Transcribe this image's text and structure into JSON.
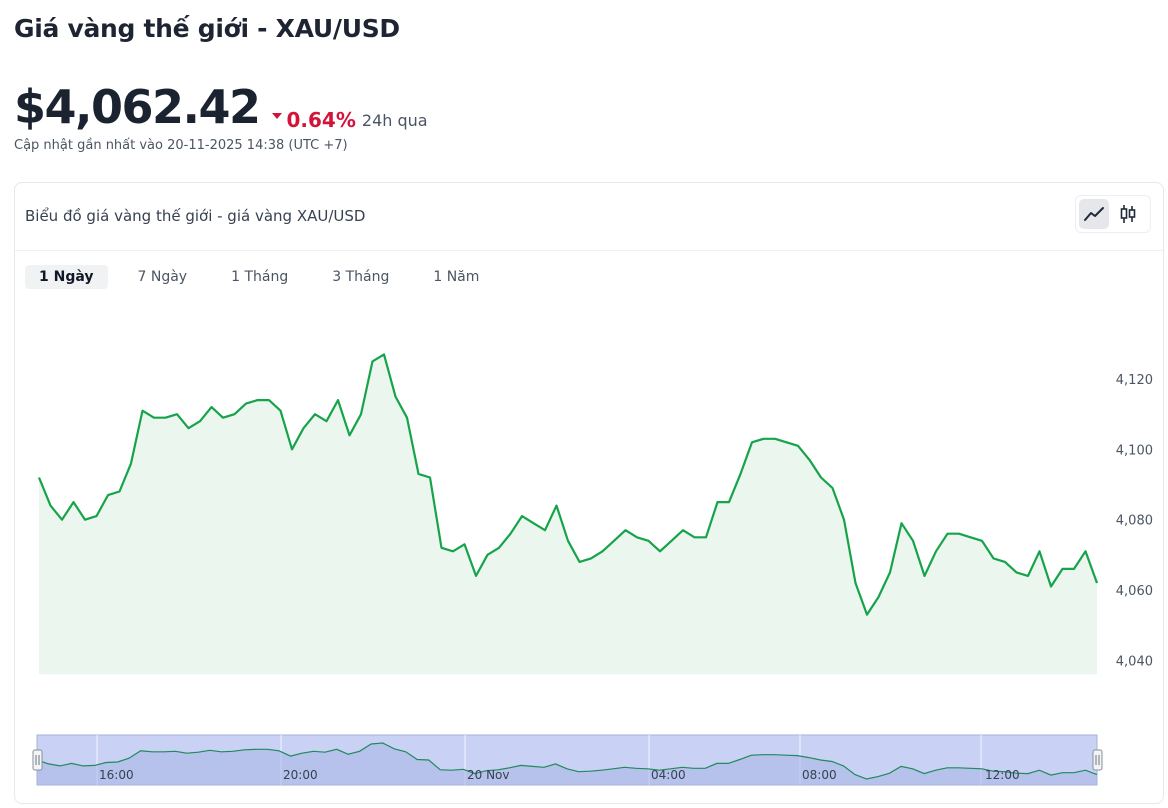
{
  "page": {
    "title": "Giá vàng thế giới - XAU/USD",
    "price": "$4,062.42",
    "change": "0.64%",
    "change_period": "24h qua",
    "updated": "Cập nhật gần nhất vào 20-11-2025 14:38 (UTC +7)"
  },
  "card": {
    "title": "Biểu đồ giá vàng thế giới - giá vàng XAU/USD",
    "modes": [
      {
        "icon": "line-chart-icon",
        "active": true
      },
      {
        "icon": "candlestick-icon",
        "active": false
      }
    ],
    "tabs": [
      {
        "label": "1 Ngày",
        "active": true
      },
      {
        "label": "7 Ngày",
        "active": false
      },
      {
        "label": "1 Tháng",
        "active": false
      },
      {
        "label": "3 Tháng",
        "active": false
      },
      {
        "label": "1 Năm",
        "active": false
      }
    ]
  },
  "colors": {
    "line": "#16a34a",
    "fill": "#eaf6ee",
    "down": "#d2143a",
    "navigator": "#c9d1f5"
  },
  "chart_data": {
    "type": "area",
    "ylim": [
      4040,
      4130
    ],
    "yticks": [
      4040,
      4060,
      4080,
      4100,
      4120
    ],
    "ytick_labels": [
      "4,040",
      "4,060",
      "4,080",
      "4,100",
      "4,120"
    ],
    "navigator_labels": [
      "16:00",
      "20:00",
      "20 Nov",
      "04:00",
      "08:00",
      "12:00"
    ],
    "series": [
      {
        "values": [
          4092,
          4084,
          4080,
          4085,
          4080,
          4081,
          4087,
          4088,
          4096,
          4111,
          4109,
          4109,
          4110,
          4106,
          4108,
          4112,
          4109,
          4110,
          4113,
          4114,
          4114,
          4111,
          4100,
          4106,
          4110,
          4108,
          4114,
          4104,
          4110,
          4125,
          4127,
          4115,
          4109,
          4093,
          4092,
          4072,
          4071,
          4073,
          4064,
          4070,
          4072,
          4076,
          4081,
          4079,
          4077,
          4084,
          4074,
          4068,
          4069,
          4071,
          4074,
          4077,
          4075,
          4074,
          4071,
          4074,
          4077,
          4075,
          4075,
          4085,
          4085,
          4093,
          4102,
          4103,
          4103,
          4102,
          4101,
          4097,
          4092,
          4089,
          4080,
          4062,
          4053,
          4058,
          4065,
          4079,
          4074,
          4064,
          4071,
          4076,
          4076,
          4075,
          4074,
          4069,
          4068,
          4065,
          4064,
          4071,
          4061,
          4066,
          4066,
          4071,
          4062
        ]
      }
    ]
  }
}
